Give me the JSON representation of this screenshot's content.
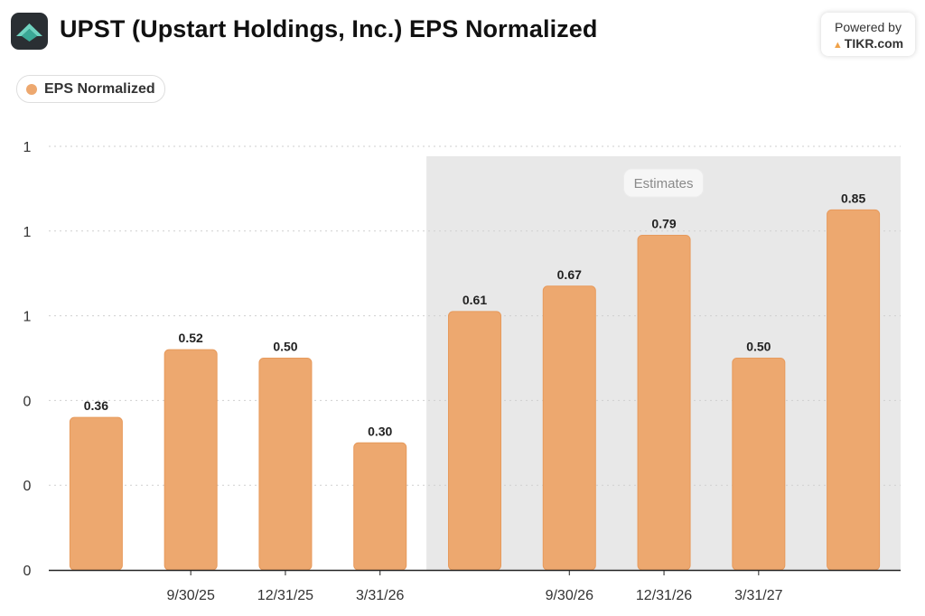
{
  "header": {
    "title": "UPST (Upstart Holdings, Inc.) EPS Normalized",
    "logo_icon": "upstart-logo-icon",
    "powered_line1": "Powered by",
    "powered_line2": "TIKR.com",
    "powered_icon": "tikr-triangle-icon"
  },
  "legend": {
    "label": "EPS Normalized",
    "color": "#eda86f"
  },
  "chart_data": {
    "type": "bar",
    "title": "UPST (Upstart Holdings, Inc.) EPS Normalized",
    "categories": [
      "",
      "9/30/25",
      "12/31/25",
      "3/31/26",
      "",
      "9/30/26",
      "12/31/26",
      "3/31/27",
      ""
    ],
    "series": [
      {
        "name": "EPS Normalized",
        "values": [
          0.36,
          0.52,
          0.5,
          0.3,
          0.61,
          0.67,
          0.79,
          0.5,
          0.85
        ],
        "labels": [
          "0.36",
          "0.52",
          "0.50",
          "0.30",
          "0.61",
          "0.67",
          "0.79",
          "0.50",
          "0.85"
        ]
      }
    ],
    "y_tick_values": [
      0,
      0.2,
      0.4,
      0.6,
      0.8,
      1.0
    ],
    "y_tick_labels": [
      "0",
      "0",
      "0",
      "1",
      "1",
      "1"
    ],
    "ylim": [
      0,
      1.0
    ],
    "grid": true,
    "estimates_label": "Estimates",
    "estimates_from_index": 4,
    "bar_color": "#eda86f",
    "bar_stroke": "#e79a5c",
    "estimates_bg": "#e8e8e8"
  }
}
